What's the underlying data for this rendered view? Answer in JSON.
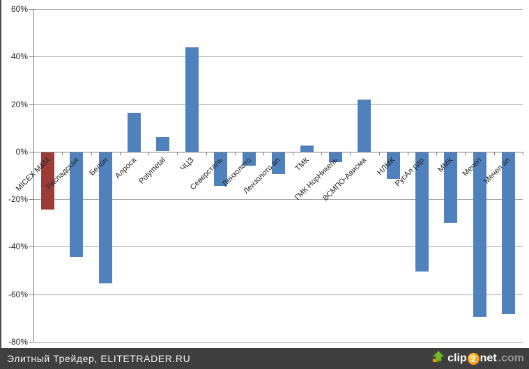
{
  "chart_data": {
    "type": "bar",
    "title": "",
    "xlabel": "",
    "ylabel": "",
    "grid": true,
    "legend": false,
    "ylim": [
      -80,
      60
    ],
    "ytick_values": [
      60,
      40,
      20,
      0,
      -20,
      -40,
      -60,
      -80
    ],
    "ytick_labels": [
      "60%",
      "40%",
      "20%",
      "0%",
      "-20%",
      "-40%",
      "-60%",
      "-80%"
    ],
    "categories": [
      "MICEX M&M",
      "Распадская",
      "Белон",
      "Алроса",
      "Polymetal",
      "ЧЦЗ",
      "Северсталь",
      "Лензолото",
      "Лензолото ап",
      "ТМК",
      "ГМК НорНикель",
      "ВСМПО-Ависма",
      "НЛМК",
      "РусАл рдр",
      "ММК",
      "Мечел",
      "Мечел ап"
    ],
    "values": [
      -24,
      -44,
      -55,
      16.5,
      6,
      44,
      -14,
      -5.5,
      -9,
      2.5,
      -4,
      22,
      -11,
      -50,
      -29.5,
      -69,
      -68
    ],
    "bar_color": "#4F81BD",
    "highlight_color": "#9B3C39",
    "highlight_index": 0,
    "gridline_color": "#A6A6A6",
    "axis_color": "#7F7F7F"
  },
  "footer": {
    "text": "Элитный Трейдер, ELITETRADER.RU",
    "logo": {
      "clip": "clip",
      "two": "2",
      "net": "net",
      "com": ".com"
    }
  }
}
